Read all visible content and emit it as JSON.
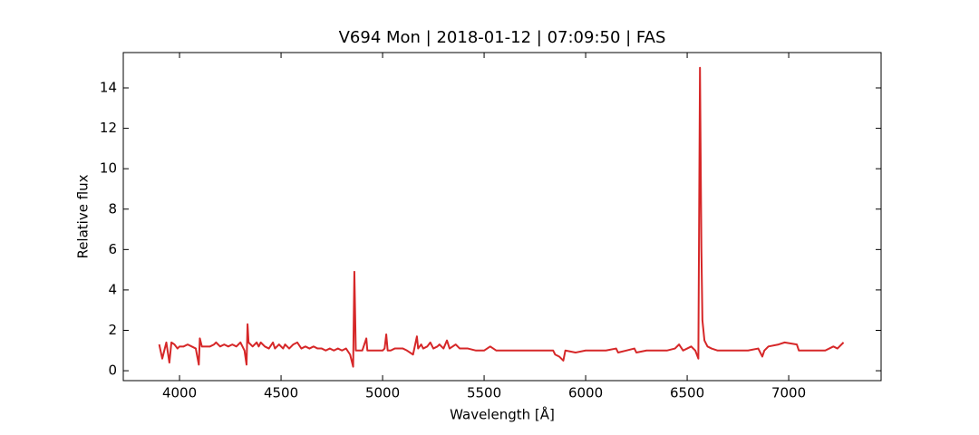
{
  "chart_data": {
    "type": "line",
    "title": "V694 Mon | 2018-01-12 | 07:09:50 | FAS",
    "xlabel": "Wavelength [Å]",
    "ylabel": "Relative flux",
    "x": [
      3900,
      3915,
      3925,
      3935,
      3950,
      3960,
      3975,
      3990,
      4000,
      4020,
      4040,
      4060,
      4080,
      4095,
      4100,
      4110,
      4130,
      4150,
      4170,
      4180,
      4200,
      4220,
      4240,
      4260,
      4280,
      4300,
      4320,
      4330,
      4335,
      4340,
      4360,
      4380,
      4390,
      4400,
      4420,
      4440,
      4460,
      4470,
      4490,
      4510,
      4520,
      4540,
      4560,
      4580,
      4600,
      4620,
      4640,
      4660,
      4680,
      4700,
      4720,
      4740,
      4760,
      4780,
      4800,
      4820,
      4840,
      4855,
      4861,
      4868,
      4880,
      4900,
      4920,
      4925,
      4940,
      4960,
      4980,
      5000,
      5010,
      5018,
      5025,
      5040,
      5060,
      5080,
      5100,
      5120,
      5150,
      5169,
      5175,
      5190,
      5200,
      5220,
      5235,
      5250,
      5270,
      5280,
      5300,
      5317,
      5330,
      5360,
      5380,
      5420,
      5460,
      5500,
      5530,
      5560,
      5600,
      5650,
      5700,
      5750,
      5800,
      5840,
      5850,
      5870,
      5890,
      5900,
      5950,
      6000,
      6050,
      6100,
      6150,
      6160,
      6200,
      6240,
      6250,
      6300,
      6350,
      6400,
      6440,
      6460,
      6480,
      6500,
      6520,
      6540,
      6555,
      6563,
      6570,
      6575,
      6585,
      6600,
      6620,
      6650,
      6700,
      6750,
      6800,
      6850,
      6870,
      6880,
      6900,
      6950,
      6980,
      7040,
      7050,
      7100,
      7150,
      7180,
      7220,
      7240,
      7270
    ],
    "series": [
      {
        "color": "#d62728",
        "values": [
          1.3,
          0.6,
          1.0,
          1.4,
          0.4,
          1.4,
          1.3,
          1.1,
          1.2,
          1.2,
          1.3,
          1.2,
          1.1,
          0.3,
          1.6,
          1.2,
          1.2,
          1.2,
          1.3,
          1.4,
          1.2,
          1.3,
          1.2,
          1.3,
          1.2,
          1.4,
          1.0,
          0.3,
          2.3,
          1.4,
          1.2,
          1.4,
          1.2,
          1.4,
          1.2,
          1.1,
          1.4,
          1.1,
          1.3,
          1.1,
          1.3,
          1.1,
          1.3,
          1.4,
          1.1,
          1.2,
          1.1,
          1.2,
          1.1,
          1.1,
          1.0,
          1.1,
          1.0,
          1.1,
          1.0,
          1.1,
          0.8,
          0.2,
          4.9,
          1.0,
          1.0,
          1.0,
          1.6,
          1.0,
          1.0,
          1.0,
          1.0,
          1.0,
          1.1,
          1.8,
          1.0,
          1.0,
          1.1,
          1.1,
          1.1,
          1.0,
          0.8,
          1.7,
          1.1,
          1.3,
          1.1,
          1.2,
          1.4,
          1.1,
          1.2,
          1.3,
          1.1,
          1.5,
          1.1,
          1.3,
          1.1,
          1.1,
          1.0,
          1.0,
          1.2,
          1.0,
          1.0,
          1.0,
          1.0,
          1.0,
          1.0,
          1.0,
          0.8,
          0.7,
          0.5,
          1.0,
          0.9,
          1.0,
          1.0,
          1.0,
          1.1,
          0.9,
          1.0,
          1.1,
          0.9,
          1.0,
          1.0,
          1.0,
          1.1,
          1.3,
          1.0,
          1.1,
          1.2,
          1.0,
          0.6,
          15.0,
          6.0,
          2.5,
          1.5,
          1.2,
          1.1,
          1.0,
          1.0,
          1.0,
          1.0,
          1.1,
          0.7,
          1.0,
          1.2,
          1.3,
          1.4,
          1.3,
          1.0,
          1.0,
          1.0,
          1.0,
          1.2,
          1.1,
          1.4
        ]
      }
    ],
    "xlim": [
      3723,
      7455
    ],
    "ylim": [
      -0.49,
      15.75
    ],
    "xticks": [
      4000,
      4500,
      5000,
      5500,
      6000,
      6500,
      7000
    ],
    "yticks": [
      0,
      2,
      4,
      6,
      8,
      10,
      12,
      14
    ]
  }
}
